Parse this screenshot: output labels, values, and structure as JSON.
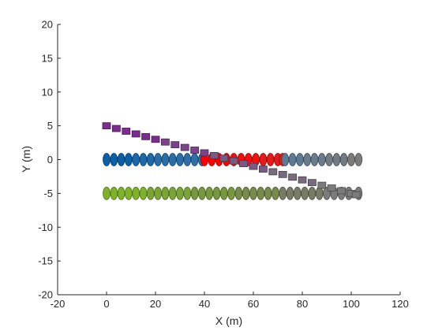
{
  "chart_data": {
    "type": "scatter",
    "title": "",
    "xlabel": "X (m)",
    "ylabel": "Y (m)",
    "xlim": [
      -20,
      120
    ],
    "ylim": [
      -20,
      20
    ],
    "xticks": [
      "-20",
      "0",
      "20",
      "40",
      "60",
      "80",
      "100",
      "120"
    ],
    "yticks": [
      "-20",
      "-15",
      "-10",
      "-5",
      "0",
      "5",
      "10",
      "15",
      "20"
    ],
    "grid": false,
    "legend": "none",
    "series": [
      {
        "marker": "ellipse",
        "colors": [
          "#0b5fa5",
          "#1d68a8",
          "#2a6ea8",
          "#2f6fa6"
        ],
        "x": [
          0,
          3,
          6,
          9,
          12,
          15,
          18,
          21,
          24,
          27,
          30,
          33,
          36,
          39
        ],
        "y": [
          0,
          0,
          0,
          0,
          0,
          0,
          0,
          0,
          0,
          0,
          0,
          0,
          0,
          0
        ]
      },
      {
        "marker": "ellipse",
        "colors": [
          "#ff0000",
          "#ef1010",
          "#e21b1b"
        ],
        "x": [
          40,
          43,
          46,
          49,
          52,
          55,
          58,
          61,
          64,
          67,
          70,
          72
        ],
        "y": [
          0,
          0,
          0,
          0,
          0,
          0,
          0,
          0,
          0,
          0,
          0,
          0
        ]
      },
      {
        "marker": "ellipse",
        "colors": [
          "#5f7b94",
          "#697b8c",
          "#727a82",
          "#7b7b7b"
        ],
        "x": [
          73,
          76,
          79,
          82,
          85,
          88,
          91,
          94,
          97,
          100,
          103
        ],
        "y": [
          0,
          0,
          0,
          0,
          0,
          0,
          0,
          0,
          0,
          0,
          0
        ]
      },
      {
        "marker": "ellipse",
        "colors": [
          "#7fb22b",
          "#7aa536",
          "#78983f",
          "#778b4a",
          "#787c66",
          "#7b7b7b"
        ],
        "x": [
          0,
          3,
          6,
          9,
          12,
          15,
          18,
          21,
          24,
          27,
          30,
          33,
          36,
          39,
          42,
          45,
          48,
          51,
          54,
          57,
          60,
          63,
          66,
          69,
          72,
          75,
          78,
          81,
          84,
          87,
          90,
          93,
          96,
          99,
          103
        ],
        "y": [
          -5,
          -5,
          -5,
          -5,
          -5,
          -5,
          -5,
          -5,
          -5,
          -5,
          -5,
          -5,
          -5,
          -5,
          -5,
          -5,
          -5,
          -5,
          -5,
          -5,
          -5,
          -5,
          -5,
          -5,
          -5,
          -5,
          -5,
          -5,
          -5,
          -5,
          -5,
          -5,
          -5,
          -5,
          -5
        ]
      },
      {
        "marker": "square",
        "colors": [
          "#7b2d8e",
          "#7a4588",
          "#795a82",
          "#786b7d",
          "#7b7b7b"
        ],
        "x": [
          0,
          4,
          8,
          12,
          16,
          20,
          24,
          28,
          32,
          36,
          40,
          44,
          48,
          52,
          56,
          60,
          64,
          68,
          72,
          76,
          80,
          84,
          88,
          92,
          96,
          100,
          102
        ],
        "y": [
          5,
          4.6,
          4.2,
          3.8,
          3.4,
          3.0,
          2.6,
          2.2,
          1.8,
          1.4,
          1.0,
          0.6,
          0.2,
          -0.2,
          -0.6,
          -1.0,
          -1.4,
          -1.8,
          -2.2,
          -2.6,
          -3.0,
          -3.4,
          -3.8,
          -4.2,
          -4.6,
          -5.0,
          -5.2
        ]
      }
    ]
  }
}
